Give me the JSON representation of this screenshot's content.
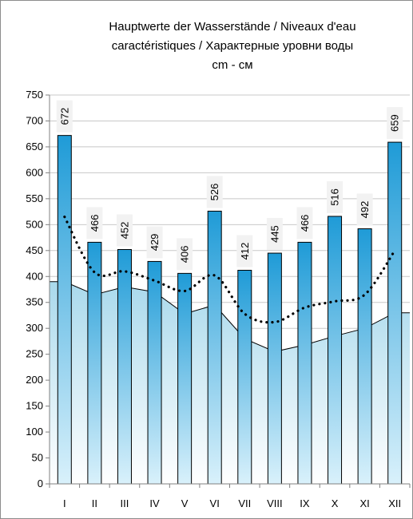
{
  "chart_data": {
    "type": "bar",
    "title": [
      "Hauptwerte der Wasserstände / Niveaux d'eau",
      "caractéristiques / Характерные уровни воды",
      "cm - см"
    ],
    "categories": [
      "I",
      "II",
      "III",
      "IV",
      "V",
      "VI",
      "VII",
      "VIII",
      "IX",
      "X",
      "XI",
      "XII"
    ],
    "ylim": [
      0,
      750
    ],
    "y_ticks": [
      "0",
      "50",
      "100",
      "150",
      "200",
      "250",
      "300",
      "350",
      "400",
      "450",
      "500",
      "550",
      "600",
      "650",
      "700",
      "750"
    ],
    "series": [
      {
        "type": "bar",
        "values": [
          672,
          466,
          452,
          429,
          406,
          526,
          412,
          445,
          466,
          516,
          492,
          659
        ],
        "data_labels": [
          "672",
          "466",
          "452",
          "429",
          "406",
          "526",
          "412",
          "445",
          "466",
          "516",
          "492",
          "659"
        ]
      },
      {
        "type": "line-dotted",
        "values": [
          515,
          408,
          410,
          392,
          372,
          402,
          328,
          312,
          340,
          352,
          365,
          450
        ]
      },
      {
        "type": "area",
        "values": [
          390,
          365,
          380,
          370,
          328,
          345,
          280,
          255,
          268,
          285,
          300,
          330
        ]
      }
    ],
    "grid": "horizontal",
    "legend": "none",
    "colors": {
      "bar_dark": "#1f9bd7",
      "bar_light": "#d9f1fb",
      "area_top": "#a9d9ec",
      "area_bottom": "#ffffff",
      "line": "#000000",
      "gridline": "#c8c8c8"
    }
  }
}
